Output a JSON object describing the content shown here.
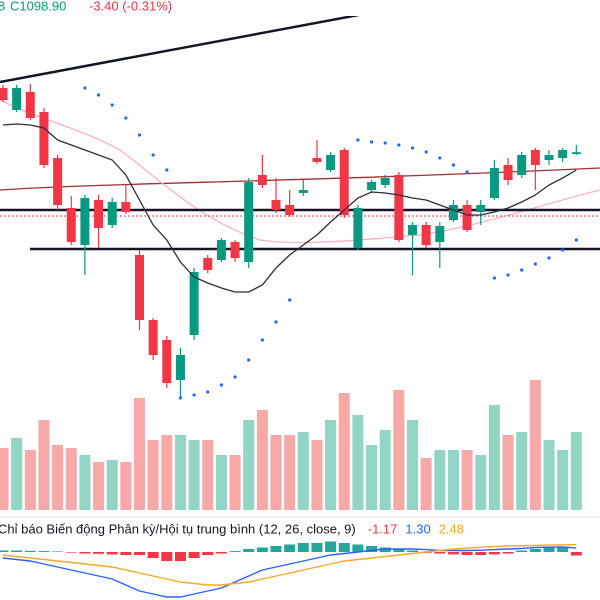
{
  "header": {
    "partial": "8",
    "close": "C1098.90",
    "change": "-3.40 (-0.31%)"
  },
  "chart_data": [
    {
      "type": "candlestick",
      "ylim": [
        975,
        1175
      ],
      "up_color": "#089981",
      "down_color": "#f23645",
      "open": [
        1131,
        1120,
        1129,
        1119,
        1096,
        1071,
        1052.5,
        1075,
        1062.5,
        1074,
        1047.5,
        1015,
        1005,
        985,
        1007.5,
        1046,
        1045,
        1054,
        1044,
        1087.5,
        1075,
        1072.5,
        1078.5,
        1096,
        1090,
        1100,
        1051,
        1080,
        1082.5,
        1087.5,
        1057.5,
        1062.5,
        1054,
        1065,
        1072.5,
        1069,
        1076,
        1092.5,
        1087.5,
        1100,
        1095,
        1096,
        1098
      ],
      "high": [
        1132.5,
        1132.5,
        1133,
        1121,
        1097.5,
        1077,
        1077.5,
        1077.5,
        1076,
        1082.5,
        1050,
        1016,
        1007,
        1001,
        1041,
        1047.5,
        1056,
        1055,
        1086,
        1097.5,
        1086,
        1080,
        1085,
        1105,
        1099,
        1101,
        1072.5,
        1085,
        1087.5,
        1089,
        1064,
        1064,
        1064,
        1075,
        1075,
        1075,
        1095,
        1096,
        1099,
        1101,
        1100,
        1101,
        1102.5
      ],
      "low": [
        1124,
        1119,
        1115,
        1091,
        1070,
        1052.5,
        1037.5,
        1051,
        1061,
        1068,
        1010,
        995,
        981,
        976,
        1005,
        1038.5,
        1044,
        1044,
        1041,
        1081,
        1068.5,
        1066.5,
        1077,
        1093,
        1089,
        1066,
        1050,
        1078.5,
        1081,
        1054,
        1037.5,
        1051,
        1041,
        1064,
        1059,
        1062.5,
        1075,
        1082.5,
        1086,
        1080,
        1092.5,
        1094,
        1097.5
      ],
      "close": [
        1125,
        1131,
        1116,
        1092.5,
        1072.5,
        1054,
        1076,
        1061,
        1074,
        1069,
        1015,
        997.5,
        983.5,
        997.5,
        1039,
        1040,
        1055,
        1046,
        1084,
        1082.5,
        1070,
        1067.5,
        1080,
        1094,
        1097.5,
        1067.5,
        1071,
        1084,
        1086,
        1055,
        1062.5,
        1052.5,
        1062,
        1072.5,
        1060,
        1072.5,
        1091,
        1085,
        1097.5,
        1092.5,
        1097.5,
        1100,
        1098.9
      ],
      "series": [
        {
          "kind": "line",
          "color": "#2a2e39",
          "values": [
            1112.5,
            1113,
            1112.5,
            1111,
            1105,
            1102.5,
            1100,
            1097.5,
            1095,
            1087.5,
            1075,
            1062.5,
            1055,
            1044,
            1036.5,
            1033.5,
            1031,
            1029,
            1029,
            1032.5,
            1041,
            1047.5,
            1052.5,
            1057.5,
            1064,
            1070,
            1076,
            1079,
            1078.5,
            1077.5,
            1076,
            1075,
            1072.5,
            1070,
            1067.5,
            1067.5,
            1069,
            1071,
            1074,
            1077.5,
            1082.5,
            1086,
            1090
          ]
        },
        {
          "kind": "dots",
          "color": "#2962ff",
          "values": [
            null,
            null,
            null,
            null,
            null,
            null,
            1131,
            1127.5,
            1122.5,
            1116,
            1107.5,
            1097.5,
            1090,
            976,
            977.5,
            979,
            982.5,
            986.5,
            995,
            1005,
            1014,
            1025,
            null,
            null,
            null,
            null,
            1105,
            1104,
            1103.5,
            1102.5,
            1101,
            1099,
            1096,
            1092.5,
            1089,
            null,
            1036,
            1037.5,
            1040,
            1043,
            1046,
            1050,
            1055
          ]
        }
      ]
    },
    {
      "type": "bar",
      "ylim": [
        0,
        150
      ],
      "up_color": "#93d5c4",
      "down_color": "#f7a9a7",
      "values": [
        62,
        72,
        60,
        90,
        65,
        62,
        55,
        48,
        50,
        48,
        112,
        70,
        75,
        75,
        70,
        70,
        55,
        55,
        90,
        100,
        75,
        75,
        78,
        70,
        90,
        117,
        95,
        65,
        80,
        120,
        90,
        52,
        60,
        60,
        60,
        55,
        105,
        75,
        78,
        130,
        70,
        60,
        78
      ]
    },
    {
      "type": "macd",
      "title": "Chỉ báo Biến động Phân kỳ/Hội tụ trung bình (12, 26, close, 9)",
      "ylim": [
        -16,
        4
      ],
      "up_color": "#26a69a",
      "down_color": "#f23645",
      "histogram": [
        0.5,
        0.5,
        0.4,
        0.3,
        0.2,
        -0.2,
        -0.5,
        -0.6,
        -0.8,
        -1,
        -1,
        -2,
        -3,
        -3,
        -2,
        -1,
        -0.5,
        0.3,
        1,
        1.5,
        2,
        2.5,
        3,
        3,
        3.5,
        3,
        2.5,
        2,
        1.5,
        1,
        0.5,
        -0.3,
        -0.5,
        -0.8,
        -1,
        -1,
        -0.8,
        -0.5,
        0.5,
        1,
        1.5,
        1.8,
        -1.17
      ],
      "series": [
        {
          "name": "MACD",
          "color": "#2962ff",
          "values": [
            -2,
            -2.5,
            -3,
            -4,
            -5,
            -6,
            -7,
            -8,
            -9,
            -11,
            -13,
            -14,
            -15,
            -15,
            -14,
            -13,
            -12,
            -10,
            -8,
            -6,
            -5,
            -4,
            -3,
            -2,
            -1,
            -0.5,
            0,
            0.5,
            1,
            1,
            1,
            0.8,
            0.5,
            0.5,
            0.5,
            0.6,
            0.8,
            1,
            1.2,
            1.5,
            1.6,
            1.7,
            1.3
          ]
        },
        {
          "name": "Signal",
          "color": "#f7a823",
          "values": [
            -1,
            -1.5,
            -2,
            -2.5,
            -3,
            -3.5,
            -4,
            -4.5,
            -5,
            -6,
            -7,
            -8,
            -9,
            -10,
            -10.5,
            -11,
            -11,
            -10.5,
            -10,
            -9,
            -8,
            -7,
            -6,
            -5,
            -4,
            -3,
            -2.5,
            -2,
            -1.5,
            -1,
            -0.5,
            0,
            0.5,
            1,
            1.3,
            1.6,
            1.8,
            2,
            2.1,
            2.2,
            2.3,
            2.4,
            2.48
          ]
        }
      ],
      "readouts": [
        {
          "value": -1.17,
          "label": "-1.17",
          "color": "#f23645"
        },
        {
          "value": 1.3,
          "label": "1.30",
          "color": "#2962ff"
        },
        {
          "value": 2.48,
          "label": "2.48",
          "color": "#f7a823"
        }
      ]
    }
  ]
}
